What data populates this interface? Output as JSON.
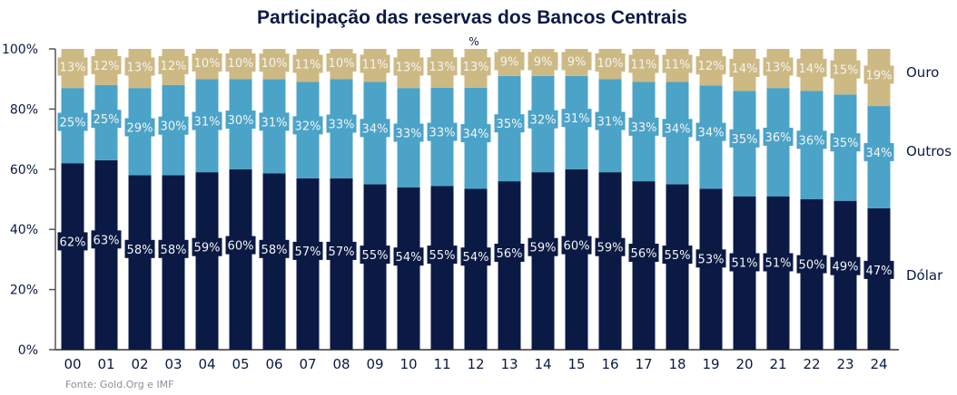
{
  "chart_data": {
    "type": "bar",
    "stacked": true,
    "title": "Participação das reservas dos Bancos Centrais",
    "unit_label": "%",
    "categories": [
      "00",
      "01",
      "02",
      "03",
      "04",
      "05",
      "06",
      "07",
      "08",
      "09",
      "10",
      "11",
      "12",
      "13",
      "14",
      "15",
      "16",
      "17",
      "18",
      "19",
      "20",
      "21",
      "22",
      "23",
      "24"
    ],
    "series": [
      {
        "name": "Dólar",
        "color": "#0a1a45",
        "values": [
          62,
          63,
          58,
          58,
          59,
          60,
          58,
          57,
          57,
          55,
          54,
          55,
          54,
          56,
          59,
          60,
          59,
          56,
          55,
          53,
          51,
          51,
          50,
          49,
          47
        ]
      },
      {
        "name": "Outros",
        "color": "#4ba3c8",
        "values": [
          25,
          25,
          29,
          30,
          31,
          30,
          31,
          32,
          33,
          34,
          33,
          33,
          34,
          35,
          32,
          31,
          31,
          33,
          34,
          34,
          35,
          36,
          36,
          35,
          34
        ]
      },
      {
        "name": "Ouro",
        "color": "#cdb983",
        "values": [
          13,
          12,
          13,
          12,
          10,
          10,
          10,
          11,
          10,
          11,
          13,
          13,
          13,
          9,
          9,
          9,
          10,
          11,
          11,
          12,
          14,
          13,
          14,
          15,
          19
        ]
      }
    ],
    "ylim": [
      0,
      100
    ],
    "yticks": [
      "0%",
      "20%",
      "40%",
      "60%",
      "80%",
      "100%"
    ],
    "legend": "right",
    "grid": false,
    "source": "Fonte: Gold.Org e IMF"
  }
}
